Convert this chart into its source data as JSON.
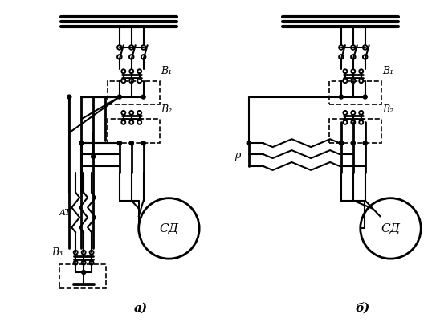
{
  "bg_color": "#ffffff",
  "line_color": "#000000",
  "fig_width": 5.43,
  "fig_height": 4.01,
  "dpi": 100,
  "label_a": "а)",
  "label_b": "б)",
  "label_AT": "AT",
  "label_B1a": "B₁",
  "label_B2a": "B₂",
  "label_B3": "B₃",
  "label_B1b": "B₁",
  "label_B2b": "B₂",
  "label_R": "ρ",
  "label_motor_a": "СД",
  "label_motor_b": "СД"
}
